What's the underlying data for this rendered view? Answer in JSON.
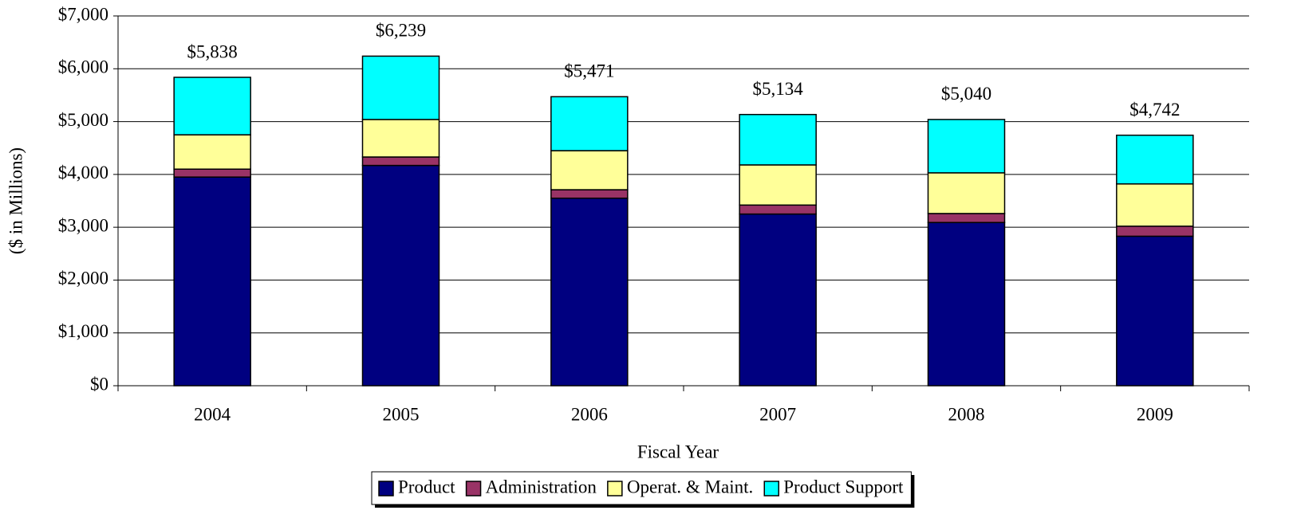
{
  "chart_data": {
    "type": "stacked_bar",
    "x_label": "Fiscal Year",
    "y_label": "($ in Millions)",
    "categories": [
      "2004",
      "2005",
      "2006",
      "2007",
      "2008",
      "2009"
    ],
    "series": [
      {
        "name": "Product",
        "color": "#000080",
        "values": [
          3950,
          4170,
          3550,
          3250,
          3090,
          2830
        ]
      },
      {
        "name": "Administration",
        "color": "#993366",
        "values": [
          150,
          160,
          160,
          170,
          170,
          190
        ]
      },
      {
        "name": "Operat. & Maint.",
        "color": "#ffff99",
        "values": [
          650,
          710,
          740,
          760,
          770,
          800
        ]
      },
      {
        "name": "Product Support",
        "color": "#00ffff",
        "values": [
          1088,
          1199,
          1021,
          954,
          1010,
          922
        ]
      }
    ],
    "totals": [
      5838,
      6239,
      5471,
      5134,
      5040,
      4742
    ],
    "total_labels": [
      "$5,838",
      "$6,239",
      "$5,471",
      "$5,134",
      "$5,040",
      "$4,742"
    ],
    "ylim": [
      0,
      7000
    ],
    "yticks": [
      {
        "value": 0,
        "label": "$0"
      },
      {
        "value": 1000,
        "label": "$1,000"
      },
      {
        "value": 2000,
        "label": "$2,000"
      },
      {
        "value": 3000,
        "label": "$3,000"
      },
      {
        "value": 4000,
        "label": "$4,000"
      },
      {
        "value": 5000,
        "label": "$5,000"
      },
      {
        "value": 6000,
        "label": "$6,000"
      },
      {
        "value": 7000,
        "label": "$7,000"
      }
    ],
    "grid": true,
    "legend": "bottom"
  }
}
